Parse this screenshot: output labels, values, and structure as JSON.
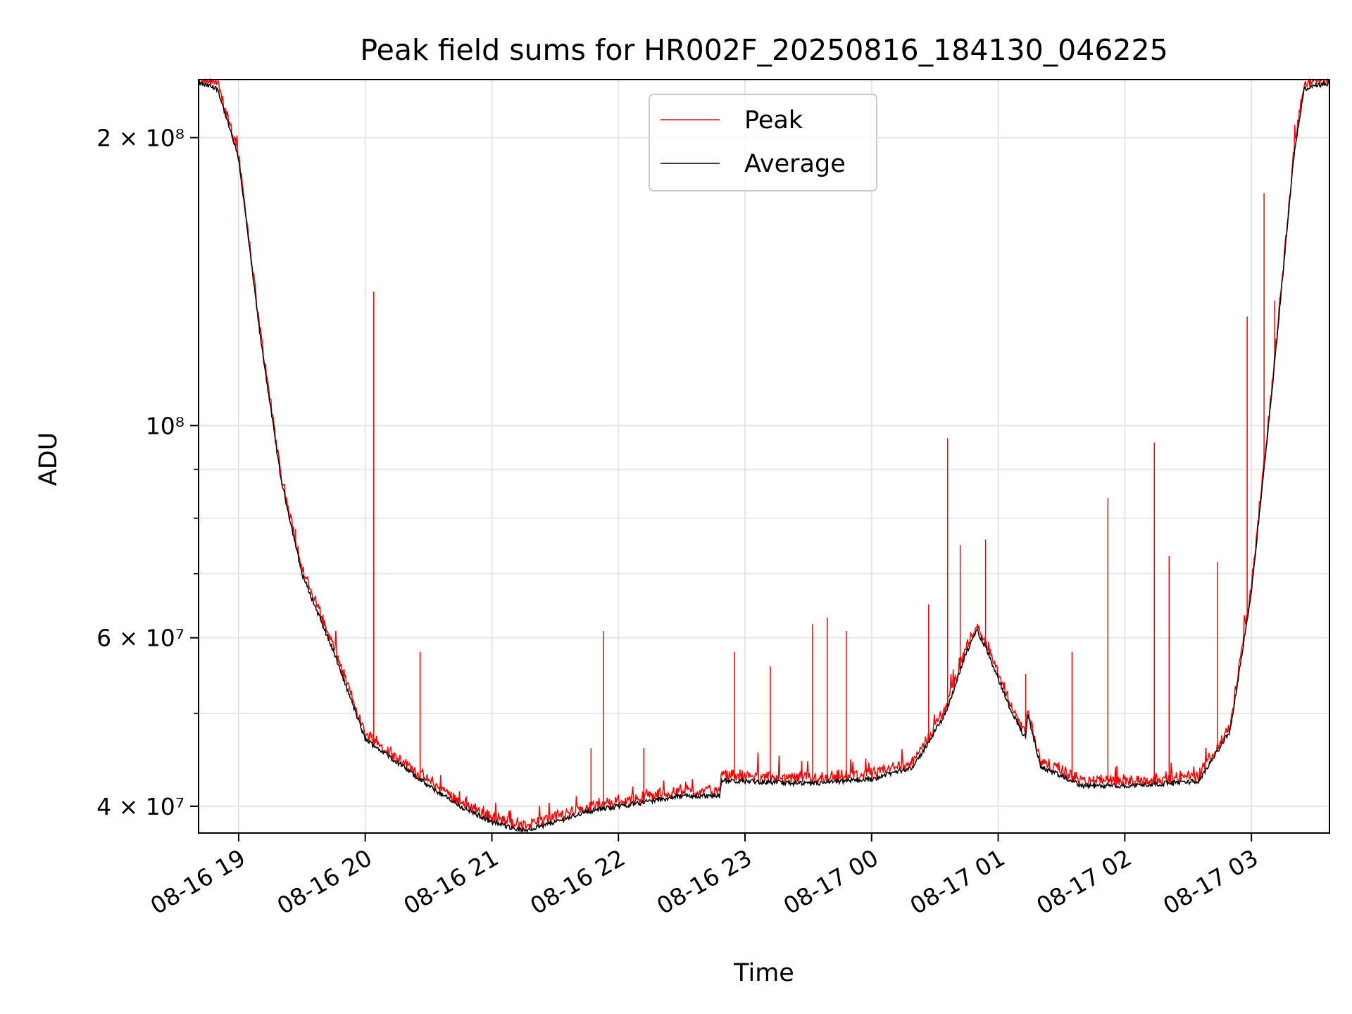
{
  "chart_data": {
    "type": "line",
    "title": "Peak field sums for HR002F_20250816_184130_046225",
    "xlabel": "Time",
    "ylabel": "ADU",
    "y_scale": "log",
    "grid": true,
    "legend_position": "top-center",
    "xlim": [
      "2025-08-16 18:41",
      "2025-08-17 03:37"
    ],
    "ylim": [
      37500000,
      230000000
    ],
    "x_ticks": [
      "08-16 19",
      "08-16 20",
      "08-16 21",
      "08-16 22",
      "08-16 23",
      "08-17 00",
      "08-17 01",
      "08-17 02",
      "08-17 03"
    ],
    "y_ticks": [
      {
        "value": 40000000,
        "label": "4 × 10⁷"
      },
      {
        "value": 60000000,
        "label": "6 × 10⁷"
      },
      {
        "value": 100000000,
        "label": "10⁸"
      },
      {
        "value": 200000000,
        "label": "2 × 10⁸"
      }
    ],
    "series": [
      {
        "name": "Peak",
        "color": "#ff0000",
        "spikes": [
          {
            "x": "2025-08-16 19:27",
            "y": 78000000
          },
          {
            "x": "2025-08-16 19:37",
            "y": 64000000
          },
          {
            "x": "2025-08-16 19:44",
            "y": 59000000
          },
          {
            "x": "2025-08-16 20:04",
            "y": 138000000
          },
          {
            "x": "2025-08-16 20:26",
            "y": 58000000
          },
          {
            "x": "2025-08-16 21:47",
            "y": 46000000
          },
          {
            "x": "2025-08-16 21:53",
            "y": 61000000
          },
          {
            "x": "2025-08-16 22:12",
            "y": 46000000
          },
          {
            "x": "2025-08-16 22:55",
            "y": 58000000
          },
          {
            "x": "2025-08-16 23:12",
            "y": 56000000
          },
          {
            "x": "2025-08-16 23:32",
            "y": 62000000
          },
          {
            "x": "2025-08-16 23:39",
            "y": 63000000
          },
          {
            "x": "2025-08-16 23:48",
            "y": 61000000
          },
          {
            "x": "2025-08-17 00:27",
            "y": 65000000
          },
          {
            "x": "2025-08-17 00:36",
            "y": 97000000
          },
          {
            "x": "2025-08-17 00:42",
            "y": 75000000
          },
          {
            "x": "2025-08-17 00:54",
            "y": 76000000
          },
          {
            "x": "2025-08-17 01:13",
            "y": 55000000
          },
          {
            "x": "2025-08-17 01:35",
            "y": 58000000
          },
          {
            "x": "2025-08-17 01:52",
            "y": 84000000
          },
          {
            "x": "2025-08-17 02:14",
            "y": 96000000
          },
          {
            "x": "2025-08-17 02:21",
            "y": 73000000
          },
          {
            "x": "2025-08-17 02:44",
            "y": 72000000
          },
          {
            "x": "2025-08-17 02:58",
            "y": 130000000
          },
          {
            "x": "2025-08-17 03:06",
            "y": 175000000
          },
          {
            "x": "2025-08-17 03:11",
            "y": 135000000
          }
        ]
      },
      {
        "name": "Average",
        "color": "#000000",
        "x": [
          "2025-08-16 18:41",
          "2025-08-16 18:50",
          "2025-08-16 19:00",
          "2025-08-16 19:10",
          "2025-08-16 19:20",
          "2025-08-16 19:30",
          "2025-08-16 19:45",
          "2025-08-16 20:00",
          "2025-08-16 20:15",
          "2025-08-16 20:30",
          "2025-08-16 20:45",
          "2025-08-16 21:00",
          "2025-08-16 21:15",
          "2025-08-16 21:30",
          "2025-08-16 21:45",
          "2025-08-16 22:00",
          "2025-08-16 22:15",
          "2025-08-16 22:30",
          "2025-08-16 22:48",
          "2025-08-16 22:49",
          "2025-08-16 23:00",
          "2025-08-16 23:30",
          "2025-08-17 00:00",
          "2025-08-17 00:20",
          "2025-08-17 00:35",
          "2025-08-17 00:45",
          "2025-08-17 00:50",
          "2025-08-17 00:55",
          "2025-08-17 01:05",
          "2025-08-17 01:13",
          "2025-08-17 01:14",
          "2025-08-17 01:20",
          "2025-08-17 01:40",
          "2025-08-17 02:00",
          "2025-08-17 02:15",
          "2025-08-17 02:35",
          "2025-08-17 02:50",
          "2025-08-17 03:00",
          "2025-08-17 03:10",
          "2025-08-17 03:20",
          "2025-08-17 03:25",
          "2025-08-17 03:37"
        ],
        "values": [
          228000000,
          225000000,
          190000000,
          125000000,
          88000000,
          70000000,
          58000000,
          47000000,
          44500000,
          42000000,
          40000000,
          38500000,
          37700000,
          38500000,
          39500000,
          40000000,
          40500000,
          41000000,
          41000000,
          42500000,
          42500000,
          42200000,
          42700000,
          44000000,
          50000000,
          58000000,
          61000000,
          58000000,
          51000000,
          47000000,
          50000000,
          44000000,
          42000000,
          42000000,
          42200000,
          42500000,
          48000000,
          67000000,
          110000000,
          190000000,
          225000000,
          228000000
        ]
      }
    ]
  }
}
